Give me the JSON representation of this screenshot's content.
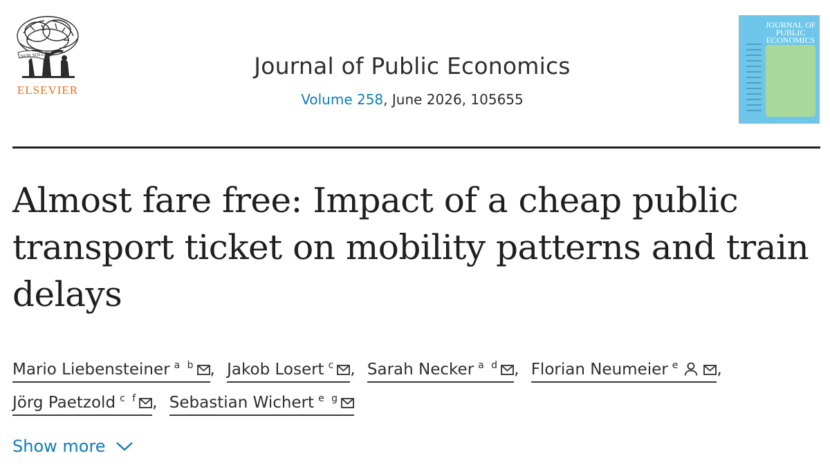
{
  "publisher": {
    "logo_text": "ELSEVIER",
    "logo_motto": "NON SOLUS",
    "accent_color": "#e9711c"
  },
  "journal": {
    "title": "Journal of Public Economics",
    "volume_label": "Volume 258",
    "volume_rest": ", June 2026, 105655",
    "link_color": "#0c7dbb"
  },
  "cover": {
    "title": "JOURNAL OF PUBLIC ECONOMICS",
    "bg_color": "#6ec6ea",
    "panel_color": "#a8d89a"
  },
  "article": {
    "title": "Almost fare free: Impact of a cheap public transport ticket on mobility patterns and train delays"
  },
  "authors": [
    {
      "name": "Mario Liebensteiner",
      "affil": "a b",
      "icons": [
        "mail-icon"
      ]
    },
    {
      "name": "Jakob Losert",
      "affil": "c",
      "icons": [
        "mail-icon"
      ]
    },
    {
      "name": "Sarah Necker",
      "affil": "a d",
      "icons": [
        "mail-icon"
      ]
    },
    {
      "name": "Florian Neumeier",
      "affil": "e",
      "icons": [
        "person-icon",
        "mail-icon"
      ]
    },
    {
      "name": "Jörg Paetzold",
      "affil": "c f",
      "icons": [
        "mail-icon"
      ]
    },
    {
      "name": "Sebastian Wichert",
      "affil": "e g",
      "icons": [
        "mail-icon"
      ]
    }
  ],
  "show_more": {
    "label": "Show more",
    "icon": "chevron-down-icon"
  }
}
